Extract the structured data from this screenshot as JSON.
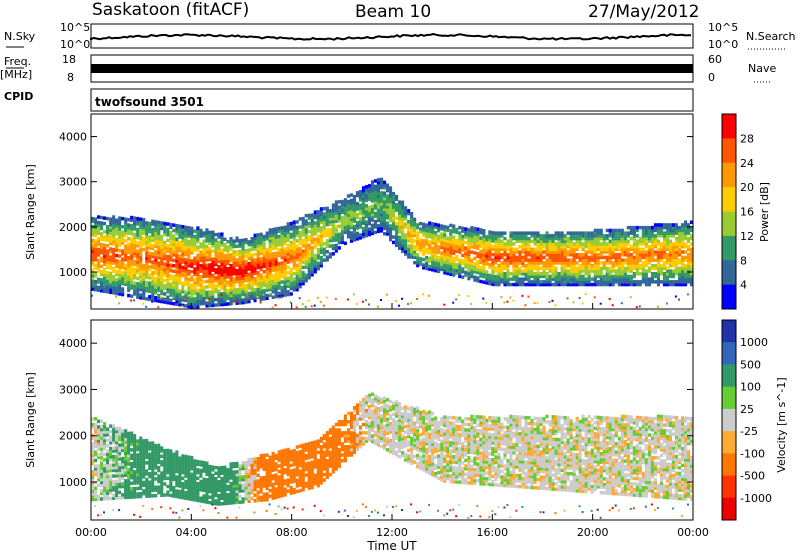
{
  "header": {
    "station": "Saskatoon (fitACF)",
    "beam": "Beam 10",
    "date": "27/May/2012"
  },
  "strips": {
    "nsky_label": "N.Sky",
    "nsky_ticks": [
      "10^5",
      "10^0"
    ],
    "nsearch_label": "N.Search",
    "nsearch_ticks": [
      "10^5",
      "10^0"
    ],
    "freq_label": "Freq.",
    "freq_unit": "[MHz]",
    "freq_ticks": [
      "18",
      "8"
    ],
    "nave_label": "Nave",
    "nave_ticks": [
      "60",
      "0"
    ],
    "cpid_label": "CPID",
    "cpid_value": "twofsound 3501"
  },
  "chart_data": [
    {
      "type": "heatmap",
      "name": "power-panel",
      "ylabel": "Slant Range [km]",
      "yticks": [
        "4000",
        "3000",
        "2000",
        "1000"
      ],
      "ylim": [
        180,
        4500
      ],
      "colorbar_label": "Power [dB]",
      "colorbar_ticks": [
        "28",
        "24",
        "20",
        "16",
        "12",
        "8",
        "4"
      ],
      "colors": [
        "#ff0000",
        "#ff5500",
        "#ff9900",
        "#ffcc00",
        "#99cc33",
        "#339966",
        "#336699",
        "#0000ff"
      ],
      "bands": [
        {
          "t": 0,
          "center": 1400,
          "width": 800,
          "power": 24
        },
        {
          "t": 2,
          "center": 1300,
          "width": 900,
          "power": 22
        },
        {
          "t": 4,
          "center": 1100,
          "width": 900,
          "power": 26
        },
        {
          "t": 6,
          "center": 1000,
          "width": 700,
          "power": 28
        },
        {
          "t": 8,
          "center": 1300,
          "width": 800,
          "power": 22
        },
        {
          "t": 10,
          "center": 2100,
          "width": 500,
          "power": 10
        },
        {
          "t": 11.5,
          "center": 2500,
          "width": 600,
          "power": 8
        },
        {
          "t": 13,
          "center": 1600,
          "width": 500,
          "power": 20
        },
        {
          "t": 16,
          "center": 1300,
          "width": 600,
          "power": 24
        },
        {
          "t": 20,
          "center": 1300,
          "width": 600,
          "power": 22
        },
        {
          "t": 24,
          "center": 1400,
          "width": 700,
          "power": 20
        }
      ]
    },
    {
      "type": "heatmap",
      "name": "velocity-panel",
      "ylabel": "Slant Range [km]",
      "yticks": [
        "4000",
        "3000",
        "2000",
        "1000"
      ],
      "ylim": [
        180,
        4500
      ],
      "xlabel": "Time UT",
      "xticks": [
        "00:00",
        "04:00",
        "08:00",
        "12:00",
        "16:00",
        "20:00",
        "00:00"
      ],
      "xlim": [
        0,
        24
      ],
      "colorbar_label": "Velocity [m s^-1]",
      "colorbar_ticks": [
        "1000",
        "500",
        "100",
        "25",
        "-25",
        "-100",
        "-500",
        "-1000"
      ],
      "colors": [
        "#2233aa",
        "#3366bb",
        "#339966",
        "#66cc33",
        "#cccccc",
        "#ffaa33",
        "#ff7700",
        "#ff3300",
        "#ee0000"
      ],
      "bands": [
        {
          "t": 0,
          "center": 1500,
          "width": 900,
          "vel": 0
        },
        {
          "t": 3,
          "center": 1200,
          "width": 500,
          "vel": 300
        },
        {
          "t": 5,
          "center": 900,
          "width": 400,
          "vel": 400
        },
        {
          "t": 7,
          "center": 1100,
          "width": 500,
          "vel": -300
        },
        {
          "t": 9,
          "center": 1400,
          "width": 500,
          "vel": -400
        },
        {
          "t": 11,
          "center": 2400,
          "width": 500,
          "vel": 0
        },
        {
          "t": 14,
          "center": 1700,
          "width": 700,
          "vel": 0
        },
        {
          "t": 24,
          "center": 1500,
          "width": 900,
          "vel": 0
        }
      ]
    }
  ]
}
